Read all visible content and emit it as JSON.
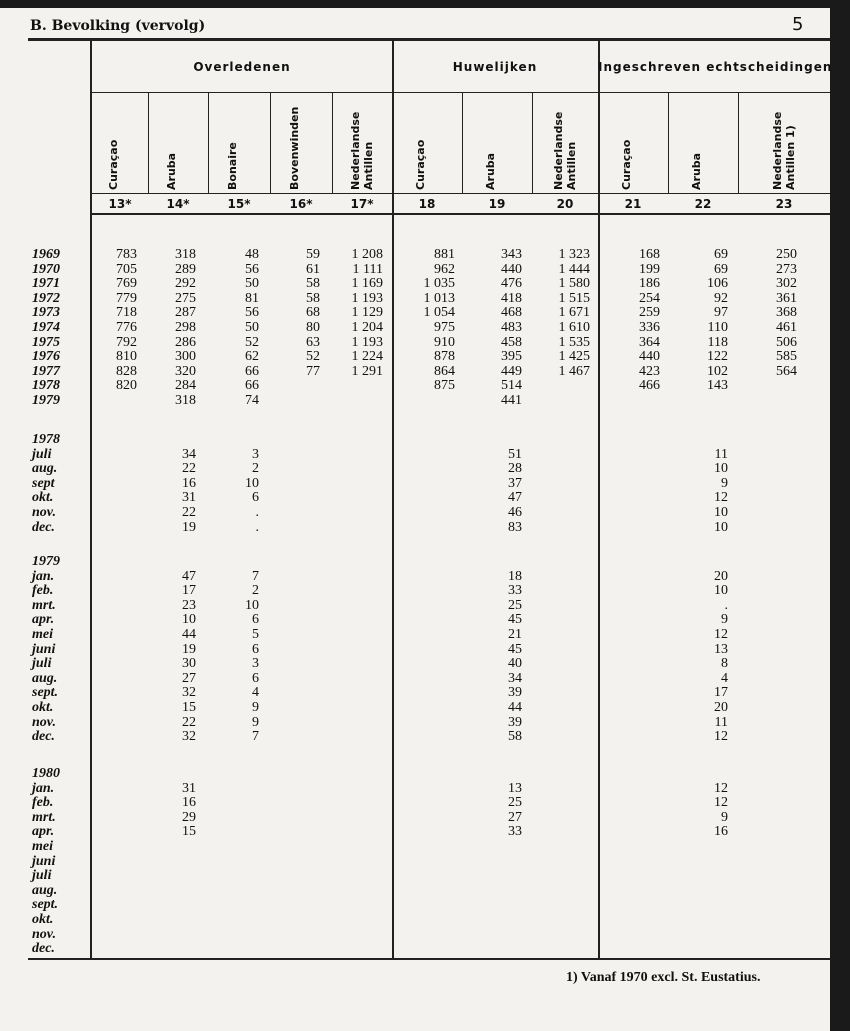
{
  "header": {
    "title": "B. Bevolking (vervolg)",
    "page_number": "5"
  },
  "table": {
    "groups": [
      {
        "label": "Overledenen",
        "columns": [
          "Curaçao",
          "Aruba",
          "Bonaire",
          "Bovenwinden",
          "Nederlandse Antillen"
        ]
      },
      {
        "label": "Huwelijken",
        "columns": [
          "Curaçao",
          "Aruba",
          "Nederlandse Antillen"
        ]
      },
      {
        "label": "Ingeschreven echtscheidingen",
        "columns": [
          "Curaçao",
          "Aruba",
          "Nederlandse Antillen 1)"
        ]
      }
    ],
    "column_numbers": [
      "13*",
      "14*",
      "15*",
      "16*",
      "17*",
      "18",
      "19",
      "20",
      "21",
      "22",
      "23"
    ],
    "sections": [
      {
        "label": null,
        "rows": [
          {
            "label": "1969",
            "cells": [
              "783",
              "318",
              "48",
              "59",
              "1 208",
              "881",
              "343",
              "1 323",
              "168",
              "69",
              "250"
            ]
          },
          {
            "label": "1970",
            "cells": [
              "705",
              "289",
              "56",
              "61",
              "1 111",
              "962",
              "440",
              "1 444",
              "199",
              "69",
              "273"
            ]
          },
          {
            "label": "1971",
            "cells": [
              "769",
              "292",
              "50",
              "58",
              "1 169",
              "1 035",
              "476",
              "1 580",
              "186",
              "106",
              "302"
            ]
          },
          {
            "label": "1972",
            "cells": [
              "779",
              "275",
              "81",
              "58",
              "1 193",
              "1 013",
              "418",
              "1 515",
              "254",
              "92",
              "361"
            ]
          },
          {
            "label": "1973",
            "cells": [
              "718",
              "287",
              "56",
              "68",
              "1 129",
              "1 054",
              "468",
              "1 671",
              "259",
              "97",
              "368"
            ]
          },
          {
            "label": "1974",
            "cells": [
              "776",
              "298",
              "50",
              "80",
              "1 204",
              "975",
              "483",
              "1 610",
              "336",
              "110",
              "461"
            ]
          },
          {
            "label": "1975",
            "cells": [
              "792",
              "286",
              "52",
              "63",
              "1 193",
              "910",
              "458",
              "1 535",
              "364",
              "118",
              "506"
            ]
          },
          {
            "label": "1976",
            "cells": [
              "810",
              "300",
              "62",
              "52",
              "1 224",
              "878",
              "395",
              "1 425",
              "440",
              "122",
              "585"
            ]
          },
          {
            "label": "1977",
            "cells": [
              "828",
              "320",
              "66",
              "77",
              "1 291",
              "864",
              "449",
              "1 467",
              "423",
              "102",
              "564"
            ]
          },
          {
            "label": "1978",
            "cells": [
              "820",
              "284",
              "66",
              null,
              null,
              "875",
              "514",
              null,
              "466",
              "143",
              null
            ]
          },
          {
            "label": "1979",
            "cells": [
              null,
              "318",
              "74",
              null,
              null,
              null,
              "441",
              null,
              null,
              null,
              null
            ]
          }
        ]
      },
      {
        "label": "1978",
        "rows": [
          {
            "label": "juli",
            "cells": [
              null,
              "34",
              "3",
              null,
              null,
              null,
              "51",
              null,
              null,
              "11",
              null
            ]
          },
          {
            "label": "aug.",
            "cells": [
              null,
              "22",
              "2",
              null,
              null,
              null,
              "28",
              null,
              null,
              "10",
              null
            ]
          },
          {
            "label": "sept",
            "cells": [
              null,
              "16",
              "10",
              null,
              null,
              null,
              "37",
              null,
              null,
              "9",
              null
            ]
          },
          {
            "label": "okt.",
            "cells": [
              null,
              "31",
              "6",
              null,
              null,
              null,
              "47",
              null,
              null,
              "12",
              null
            ]
          },
          {
            "label": "nov.",
            "cells": [
              null,
              "22",
              ".",
              null,
              null,
              null,
              "46",
              null,
              null,
              "10",
              null
            ]
          },
          {
            "label": "dec.",
            "cells": [
              null,
              "19",
              ".",
              null,
              null,
              null,
              "83",
              null,
              null,
              "10",
              null
            ]
          }
        ]
      },
      {
        "label": "1979",
        "rows": [
          {
            "label": "jan.",
            "cells": [
              null,
              "47",
              "7",
              null,
              null,
              null,
              "18",
              null,
              null,
              "20",
              null
            ]
          },
          {
            "label": "feb.",
            "cells": [
              null,
              "17",
              "2",
              null,
              null,
              null,
              "33",
              null,
              null,
              "10",
              null
            ]
          },
          {
            "label": "mrt.",
            "cells": [
              null,
              "23",
              "10",
              null,
              null,
              null,
              "25",
              null,
              null,
              ".",
              null
            ]
          },
          {
            "label": "apr.",
            "cells": [
              null,
              "10",
              "6",
              null,
              null,
              null,
              "45",
              null,
              null,
              "9",
              null
            ]
          },
          {
            "label": "mei",
            "cells": [
              null,
              "44",
              "5",
              null,
              null,
              null,
              "21",
              null,
              null,
              "12",
              null
            ]
          },
          {
            "label": "juni",
            "cells": [
              null,
              "19",
              "6",
              null,
              null,
              null,
              "45",
              null,
              null,
              "13",
              null
            ]
          },
          {
            "label": "juli",
            "cells": [
              null,
              "30",
              "3",
              null,
              null,
              null,
              "40",
              null,
              null,
              "8",
              null
            ]
          },
          {
            "label": "aug.",
            "cells": [
              null,
              "27",
              "6",
              null,
              null,
              null,
              "34",
              null,
              null,
              "4",
              null
            ]
          },
          {
            "label": "sept.",
            "cells": [
              null,
              "32",
              "4",
              null,
              null,
              null,
              "39",
              null,
              null,
              "17",
              null
            ]
          },
          {
            "label": "okt.",
            "cells": [
              null,
              "15",
              "9",
              null,
              null,
              null,
              "44",
              null,
              null,
              "20",
              null
            ]
          },
          {
            "label": "nov.",
            "cells": [
              null,
              "22",
              "9",
              null,
              null,
              null,
              "39",
              null,
              null,
              "11",
              null
            ]
          },
          {
            "label": "dec.",
            "cells": [
              null,
              "32",
              "7",
              null,
              null,
              null,
              "58",
              null,
              null,
              "12",
              null
            ]
          }
        ]
      },
      {
        "label": "1980",
        "rows": [
          {
            "label": "jan.",
            "cells": [
              null,
              "31",
              null,
              null,
              null,
              null,
              "13",
              null,
              null,
              "12",
              null
            ]
          },
          {
            "label": "feb.",
            "cells": [
              null,
              "16",
              null,
              null,
              null,
              null,
              "25",
              null,
              null,
              "12",
              null
            ]
          },
          {
            "label": "mrt.",
            "cells": [
              null,
              "29",
              null,
              null,
              null,
              null,
              "27",
              null,
              null,
              "9",
              null
            ]
          },
          {
            "label": "apr.",
            "cells": [
              null,
              "15",
              null,
              null,
              null,
              null,
              "33",
              null,
              null,
              "16",
              null
            ]
          },
          {
            "label": "mei",
            "cells": [
              null,
              null,
              null,
              null,
              null,
              null,
              null,
              null,
              null,
              null,
              null
            ]
          },
          {
            "label": "juni",
            "cells": [
              null,
              null,
              null,
              null,
              null,
              null,
              null,
              null,
              null,
              null,
              null
            ]
          },
          {
            "label": "juli",
            "cells": [
              null,
              null,
              null,
              null,
              null,
              null,
              null,
              null,
              null,
              null,
              null
            ]
          },
          {
            "label": "aug.",
            "cells": [
              null,
              null,
              null,
              null,
              null,
              null,
              null,
              null,
              null,
              null,
              null
            ]
          },
          {
            "label": "sept.",
            "cells": [
              null,
              null,
              null,
              null,
              null,
              null,
              null,
              null,
              null,
              null,
              null
            ]
          },
          {
            "label": "okt.",
            "cells": [
              null,
              null,
              null,
              null,
              null,
              null,
              null,
              null,
              null,
              null,
              null
            ]
          },
          {
            "label": "nov.",
            "cells": [
              null,
              null,
              null,
              null,
              null,
              null,
              null,
              null,
              null,
              null,
              null
            ]
          },
          {
            "label": "dec.",
            "cells": [
              null,
              null,
              null,
              null,
              null,
              null,
              null,
              null,
              null,
              null,
              null
            ]
          }
        ]
      }
    ]
  },
  "footnote": "1) Vanaf 1970 excl. St. Eustatius."
}
